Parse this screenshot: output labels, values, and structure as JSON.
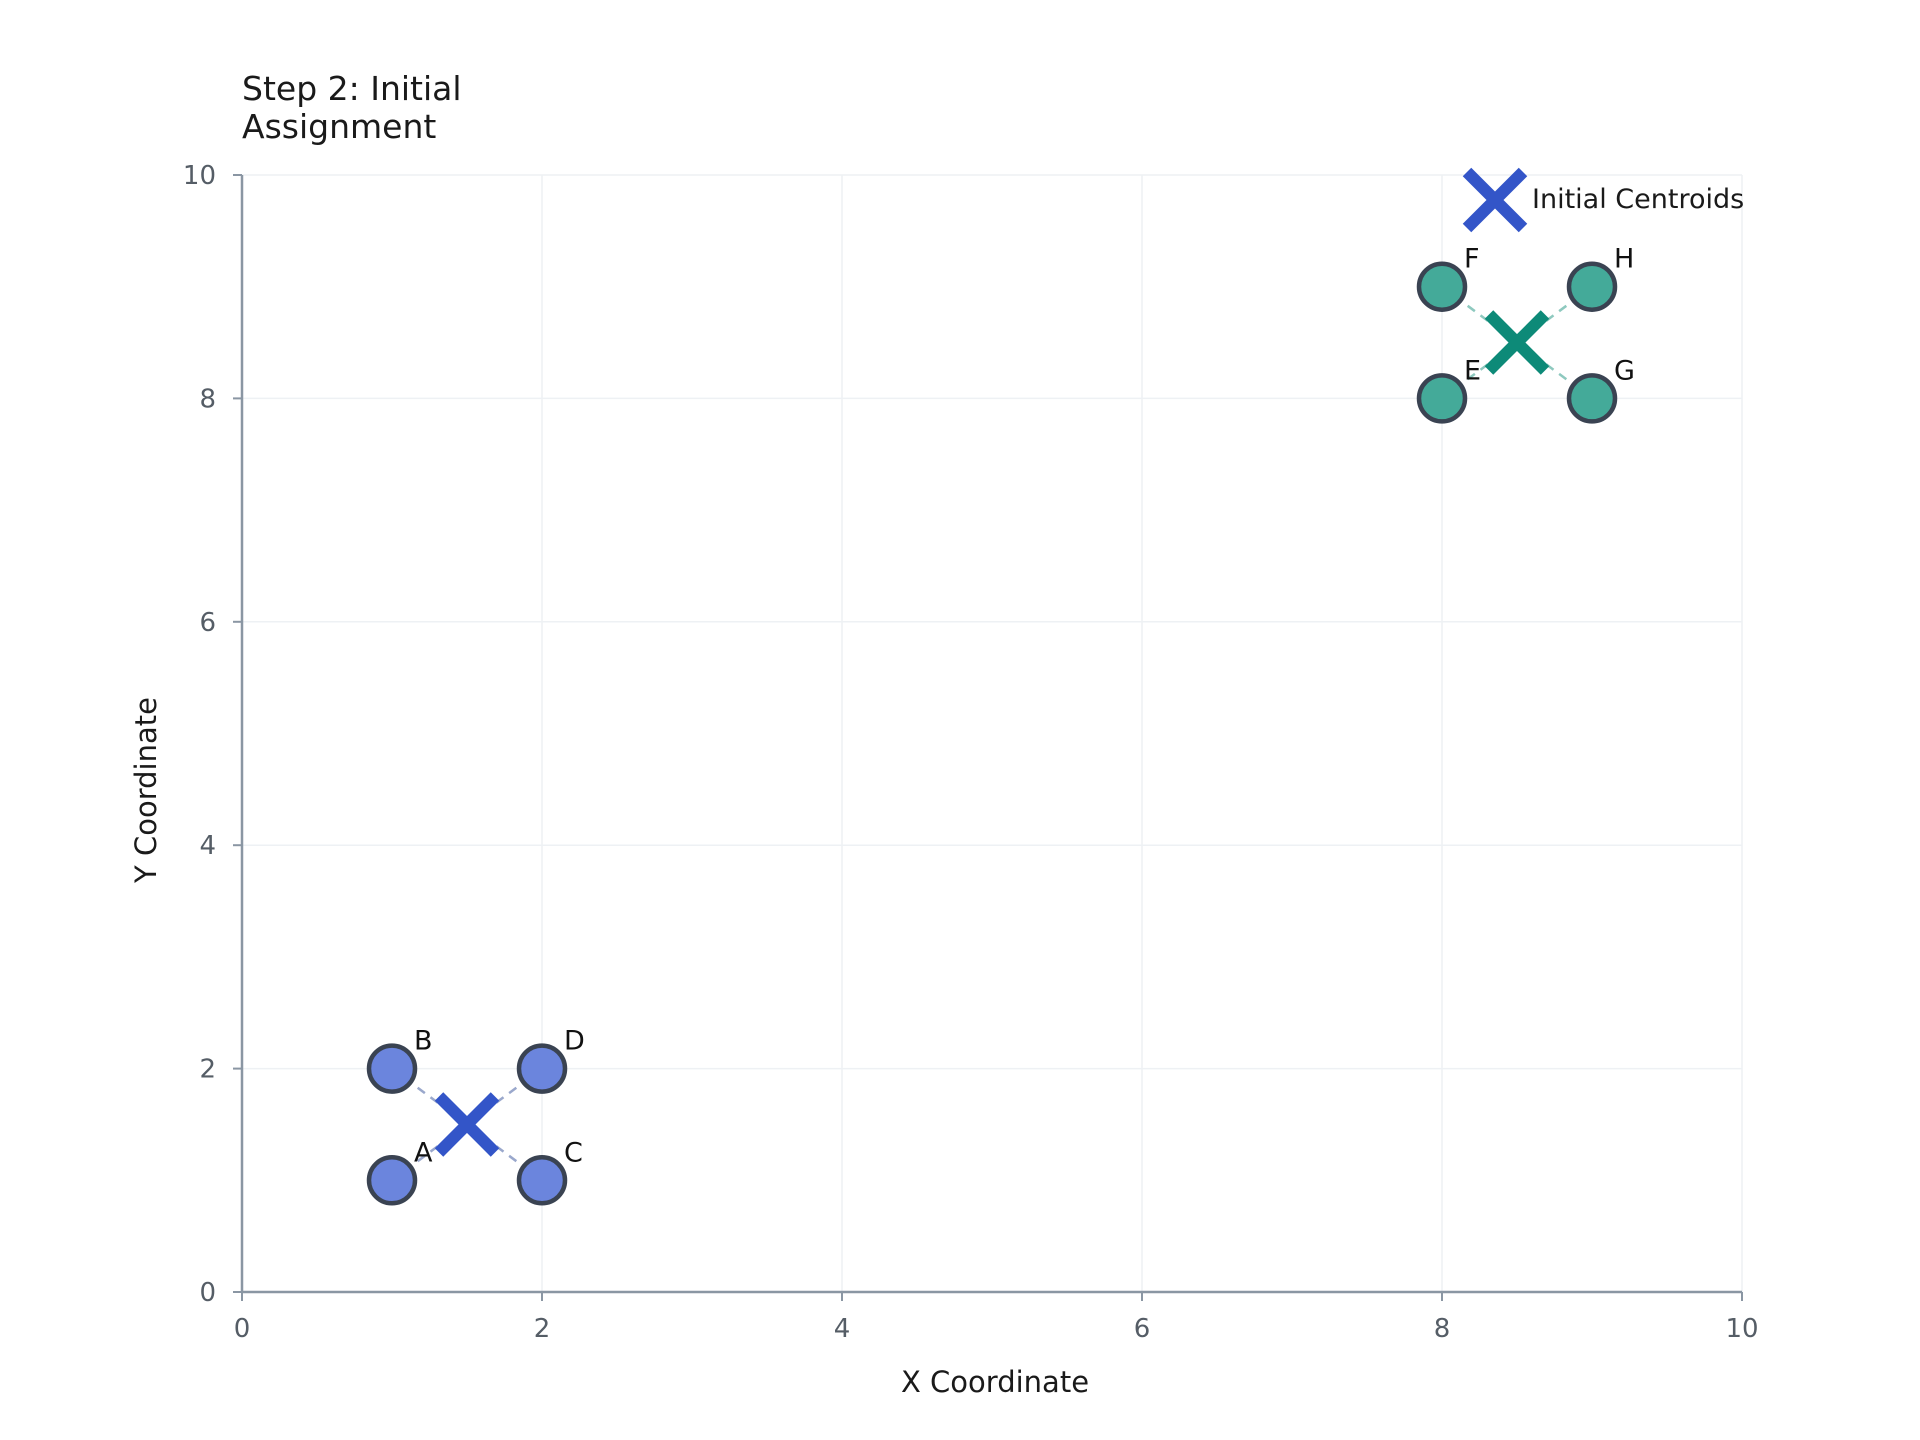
{
  "chart_data": {
    "type": "scatter",
    "title_lines": [
      "Step 2: Initial",
      "Assignment"
    ],
    "xlabel": "X Coordinate",
    "ylabel": "Y Coordinate",
    "xlim": [
      0,
      10
    ],
    "ylim": [
      0,
      10
    ],
    "xticks": [
      0,
      2,
      4,
      6,
      8,
      10
    ],
    "yticks": [
      0,
      2,
      4,
      6,
      8,
      10
    ],
    "grid": true,
    "legend": {
      "position": "top-right",
      "label": "Initial Centroids"
    },
    "clusters": [
      {
        "color": "#6b85dd",
        "centroid_color": "#3355c8",
        "line_color": "#9aa8cc",
        "centroid": {
          "x": 1.5,
          "y": 1.5
        },
        "points": [
          {
            "label": "A",
            "x": 1,
            "y": 1
          },
          {
            "label": "B",
            "x": 1,
            "y": 2
          },
          {
            "label": "C",
            "x": 2,
            "y": 1
          },
          {
            "label": "D",
            "x": 2,
            "y": 2
          }
        ]
      },
      {
        "color": "#44aa99",
        "centroid_color": "#0d8a78",
        "line_color": "#8ec9bf",
        "centroid": {
          "x": 8.5,
          "y": 8.5
        },
        "points": [
          {
            "label": "E",
            "x": 8,
            "y": 8
          },
          {
            "label": "F",
            "x": 8,
            "y": 9
          },
          {
            "label": "G",
            "x": 9,
            "y": 8
          },
          {
            "label": "H",
            "x": 9,
            "y": 9
          }
        ]
      }
    ],
    "legend_marker_color": "#3355c8"
  }
}
